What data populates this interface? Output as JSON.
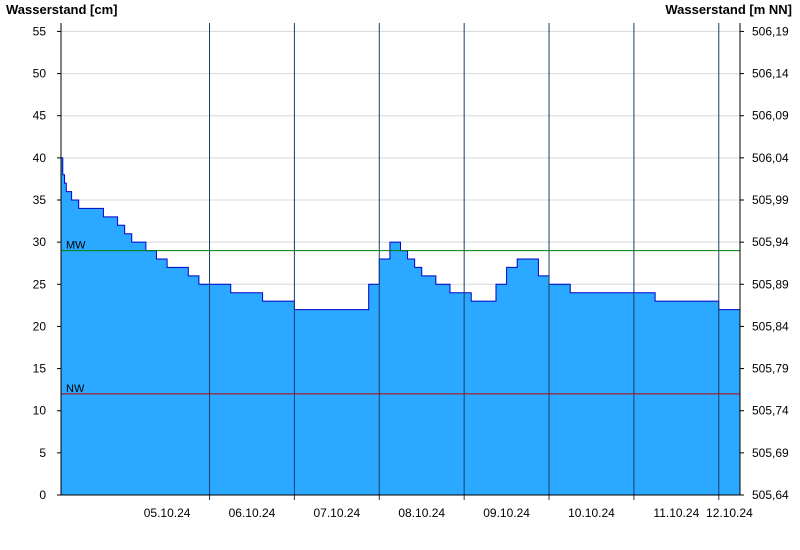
{
  "chart_data": {
    "type": "area",
    "left_ylabel": "Wasserstand [cm]",
    "right_ylabel": "Wasserstand [m NN]",
    "ylim": [
      0,
      56
    ],
    "yticks": [
      0,
      5,
      10,
      15,
      20,
      25,
      30,
      35,
      40,
      45,
      50,
      55
    ],
    "right_yticks": [
      "505,64",
      "505,69",
      "505,74",
      "505,79",
      "505,84",
      "505,89",
      "505,94",
      "505,99",
      "506,04",
      "506,09",
      "506,14",
      "506,19"
    ],
    "x_start": "04.10.24 06:00",
    "x_end": "12.10.24 06:00",
    "day_labels": [
      "05.10.24",
      "06.10.24",
      "07.10.24",
      "08.10.24",
      "09.10.24",
      "10.10.24",
      "11.10.24",
      "12.10.24"
    ],
    "grid": true,
    "fill_color": "#2BA8FF",
    "line_color": "#0000CC",
    "reference_lines": [
      {
        "label": "MW",
        "value": 29,
        "color": "#008000"
      },
      {
        "label": "NW",
        "value": 12,
        "color": "#C00000"
      }
    ],
    "x_hours": [
      0,
      0.5,
      1,
      1.5,
      2,
      3,
      4,
      5,
      6,
      8,
      10,
      12,
      14,
      16,
      18,
      20,
      22,
      24,
      27,
      30,
      33,
      36,
      39,
      42,
      45,
      48,
      51,
      54,
      57,
      60,
      63,
      66,
      69,
      72,
      75,
      78,
      81,
      84,
      87,
      90,
      93,
      96,
      98,
      100,
      102,
      104,
      106,
      108,
      110,
      112,
      114,
      116,
      118,
      120,
      123,
      126,
      129,
      132,
      135,
      138,
      141,
      144,
      147,
      150,
      153,
      156,
      159,
      162,
      165,
      168,
      171,
      174,
      177,
      180,
      183,
      186,
      189,
      192
    ],
    "values": [
      40,
      38,
      37,
      36,
      36,
      35,
      35,
      34,
      34,
      34,
      34,
      33,
      33,
      32,
      31,
      30,
      30,
      29,
      28,
      27,
      27,
      26,
      25,
      25,
      25,
      24,
      24,
      24,
      23,
      23,
      23,
      22,
      22,
      22,
      22,
      22,
      22,
      22,
      25,
      28,
      30,
      29,
      28,
      27,
      26,
      26,
      25,
      25,
      24,
      24,
      24,
      23,
      23,
      23,
      25,
      27,
      28,
      28,
      26,
      25,
      25,
      24,
      24,
      24,
      24,
      24,
      24,
      24,
      24,
      23,
      23,
      23,
      23,
      23,
      23,
      22,
      22,
      23
    ]
  }
}
